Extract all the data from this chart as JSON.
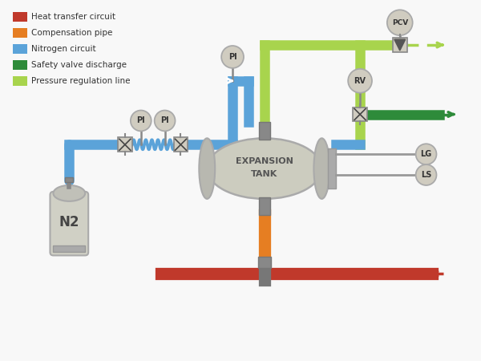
{
  "bg_color": "#f8f8f8",
  "legend_items": [
    {
      "label": "Heat transfer circuit",
      "color": "#c0392b"
    },
    {
      "label": "Compensation pipe",
      "color": "#e67e22"
    },
    {
      "label": "Nitrogen circuit",
      "color": "#5ba3d9"
    },
    {
      "label": "Safety valve discharge",
      "color": "#2e8b3a"
    },
    {
      "label": "Pressure regulation line",
      "color": "#a8d44d"
    }
  ],
  "blue": "#5ba3d9",
  "dgreen": "#2e8b3a",
  "lgreen": "#a8d44d",
  "orange": "#e67e22",
  "red": "#c0392b",
  "lgray": "#d0d0c8",
  "mgray": "#b8b8b0",
  "dgray": "#666666",
  "igray": "#d0ccc0",
  "pipe_lw": 9
}
